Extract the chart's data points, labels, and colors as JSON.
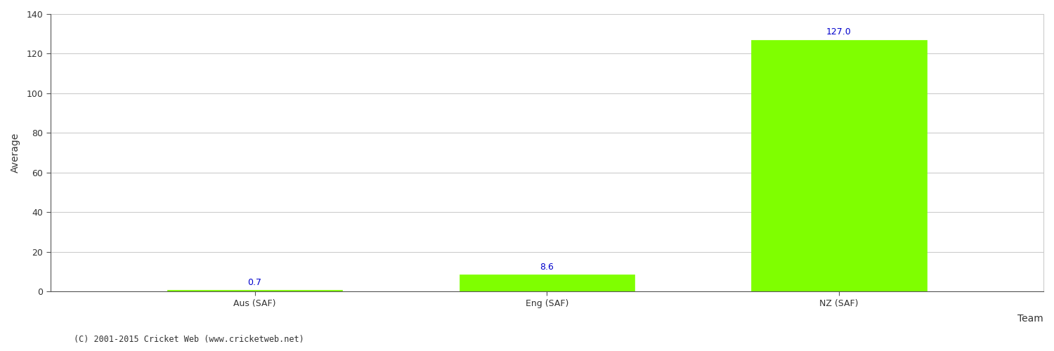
{
  "categories": [
    "Aus (SAF)",
    "Eng (SAF)",
    "NZ (SAF)"
  ],
  "values": [
    0.7,
    8.6,
    127.0
  ],
  "bar_color": "#7fff00",
  "bar_edge_color": "#7fff00",
  "label_color": "#0000cc",
  "xlabel": "Team",
  "ylabel": "Average",
  "ylim": [
    0,
    140
  ],
  "yticks": [
    0,
    20,
    40,
    60,
    80,
    100,
    120,
    140
  ],
  "background_color": "#ffffff",
  "grid_color": "#cccccc",
  "footer_text": "(C) 2001-2015 Cricket Web (www.cricketweb.net)",
  "label_fontsize": 9,
  "axis_label_fontsize": 10,
  "tick_fontsize": 9,
  "footer_fontsize": 8.5,
  "bar_width": 0.6
}
